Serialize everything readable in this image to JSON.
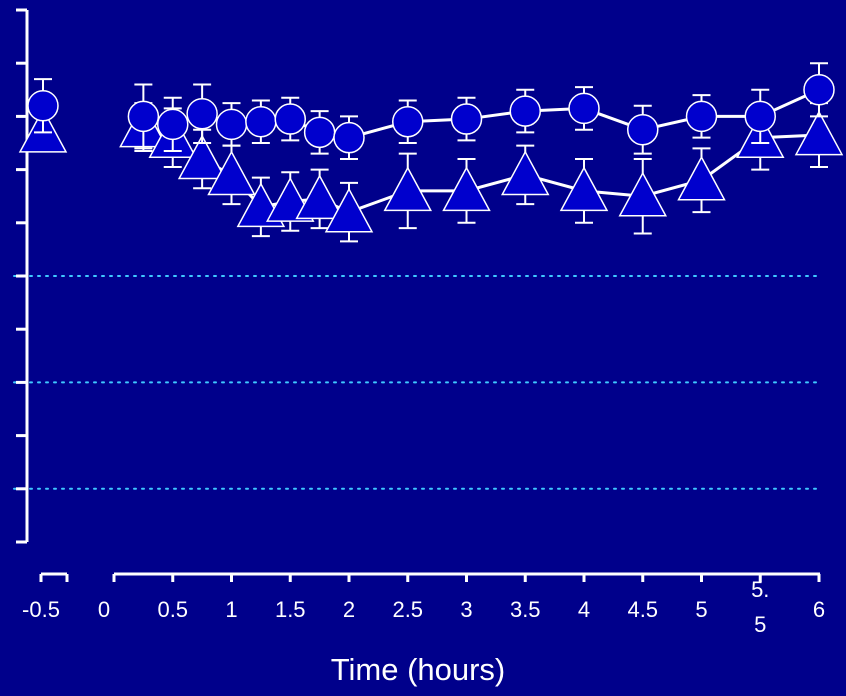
{
  "chart_data": {
    "type": "line",
    "title": "",
    "xlabel": "Time (hours)",
    "ylabel": "",
    "x_ticks": [
      -0.5,
      0,
      0.5,
      1,
      1.5,
      2,
      2.5,
      3,
      3.5,
      4,
      4.5,
      5,
      5.5,
      6
    ],
    "x_tick_labels": [
      "-0.5",
      "0",
      "0.5",
      "1",
      "1.5",
      "2",
      "2.5",
      "3",
      "3.5",
      "4",
      "4.5",
      "5",
      "5.\n5",
      "6"
    ],
    "xlim": [
      -0.5,
      6
    ],
    "ylim": [
      0,
      10
    ],
    "y_tick_count": 10,
    "y_tick_labels_shown": false,
    "reference_lines_y": [
      5,
      3,
      1
    ],
    "grid": false,
    "legend": "none",
    "series": [
      {
        "marker": "circle",
        "x": [
          -0.5,
          0.25,
          0.5,
          0.75,
          1,
          1.25,
          1.5,
          1.75,
          2,
          2.5,
          3,
          3.5,
          4,
          4.5,
          5,
          5.5,
          6
        ],
        "y": [
          8.2,
          8.0,
          7.85,
          8.05,
          7.85,
          7.9,
          7.95,
          7.7,
          7.6,
          7.9,
          7.95,
          8.1,
          8.15,
          7.75,
          8.0,
          8.0,
          8.5
        ],
        "err": [
          0.5,
          0.6,
          0.5,
          0.55,
          0.4,
          0.4,
          0.4,
          0.4,
          0.4,
          0.4,
          0.4,
          0.4,
          0.4,
          0.45,
          0.4,
          0.5,
          0.5
        ],
        "connected_from_index": 1
      },
      {
        "marker": "triangle",
        "x": [
          -0.5,
          0.25,
          0.5,
          0.75,
          1,
          1.25,
          1.5,
          1.75,
          2,
          2.5,
          3,
          3.5,
          4,
          4.5,
          5,
          5.5,
          6
        ],
        "y": [
          7.7,
          7.8,
          7.6,
          7.2,
          6.9,
          6.3,
          6.4,
          6.45,
          6.2,
          6.6,
          6.6,
          6.9,
          6.6,
          6.5,
          6.8,
          7.6,
          7.65
        ],
        "err": [
          0.3,
          0.45,
          0.55,
          0.55,
          0.55,
          0.55,
          0.55,
          0.55,
          0.55,
          0.7,
          0.6,
          0.55,
          0.6,
          0.7,
          0.6,
          0.6,
          0.6
        ],
        "connected_from_index": 1
      }
    ]
  },
  "colors": {
    "background": "#00008B",
    "axis": "#FFFFFF",
    "series_line": "#FFFFFF",
    "marker_fill": "#0000CD",
    "marker_stroke": "#FFFFFF",
    "reference_line": "#3FC8FF"
  }
}
